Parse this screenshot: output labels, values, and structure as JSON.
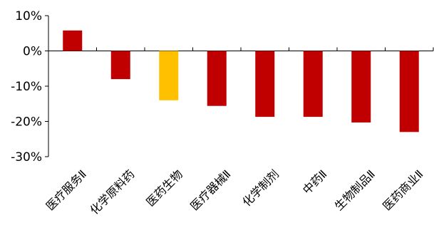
{
  "chart_data": {
    "type": "bar",
    "title": "",
    "xlabel": "",
    "ylabel": "",
    "categories": [
      "医疗服务Ⅱ",
      "化学原料药",
      "医药生物",
      "医疗器械Ⅱ",
      "化学制剂",
      "中药Ⅱ",
      "生物制品Ⅱ",
      "医药商业Ⅱ"
    ],
    "values": [
      5.8,
      -8.0,
      -14.0,
      -15.6,
      -18.7,
      -18.7,
      -20.3,
      -23.0
    ],
    "bar_colors": [
      "#C00000",
      "#C00000",
      "#FFC000",
      "#C00000",
      "#C00000",
      "#C00000",
      "#C00000",
      "#C00000"
    ],
    "ylim": [
      -30,
      10
    ],
    "yticks": [
      10,
      0,
      -10,
      -20,
      -30
    ],
    "ytick_labels": [
      "10%",
      "0%",
      "-10%",
      "-20%",
      "-30%"
    ],
    "grid": false,
    "legend": "none"
  }
}
